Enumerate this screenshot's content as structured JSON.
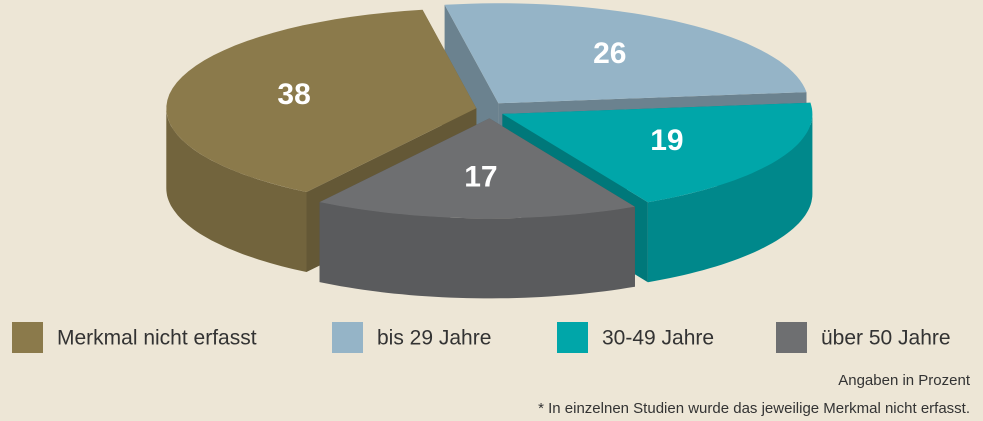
{
  "chart_data": {
    "type": "pie3d",
    "categories": [
      "Merkmal nicht erfasst",
      "bis 29 Jahre",
      "30-49 Jahre",
      "über 50 Jahre"
    ],
    "values": [
      38,
      26,
      19,
      17
    ],
    "colors": [
      "#8b7a4b",
      "#95b4c7",
      "#00a6a9",
      "#6e6f71"
    ],
    "notes": [
      "Angaben in Prozent",
      "* In einzelnen Studien wurde das jeweilige Merkmal nicht erfasst."
    ]
  }
}
